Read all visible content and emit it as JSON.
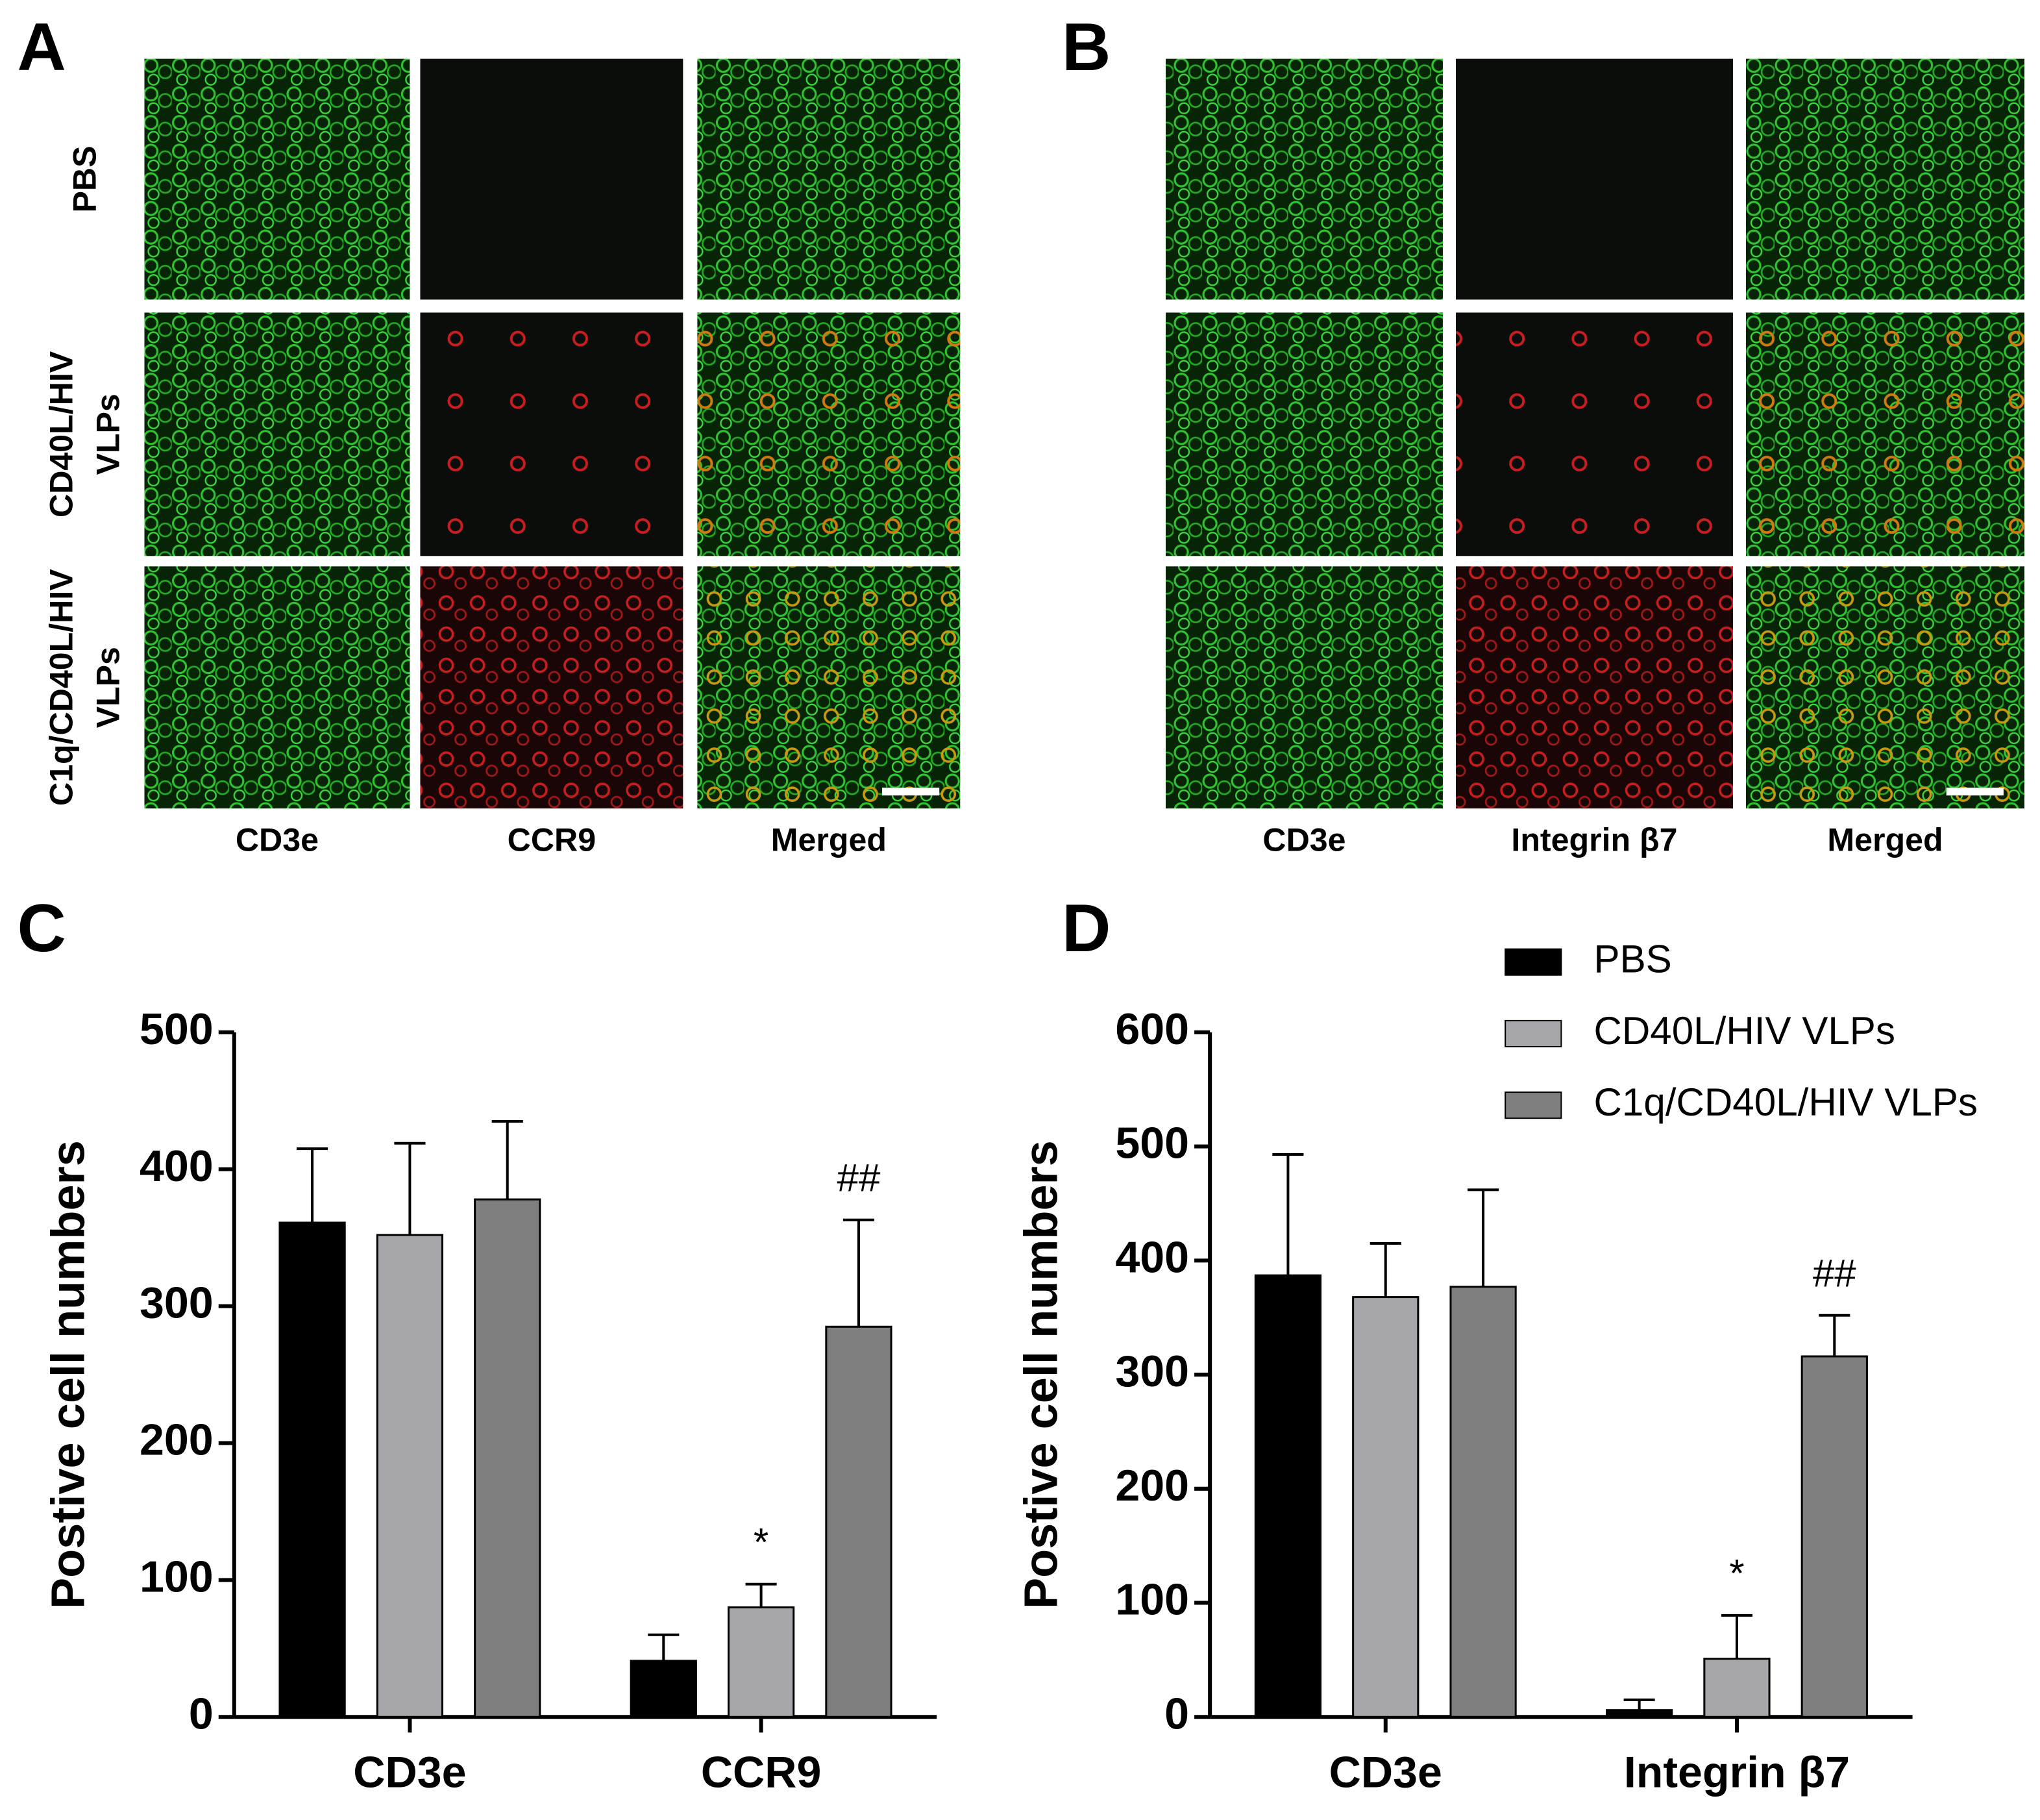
{
  "panels": [
    {
      "label": "A",
      "rows": [
        [
          "PBS"
        ],
        [
          "CD40L/HIV",
          "VLPs"
        ],
        [
          "C1q/CD40L/HIV",
          "VLPs"
        ]
      ],
      "columns": [
        "CD3e",
        "CCR9",
        "Merged"
      ]
    },
    {
      "label": "B",
      "columns": [
        "CD3e",
        "Integrin β7",
        "Merged"
      ]
    }
  ],
  "chart_data": [
    {
      "type": "bar",
      "label": "C",
      "y_label": "Postive cell numbers",
      "categories": [
        "CD3e",
        "CCR9"
      ],
      "series": [
        {
          "color": "#000000",
          "values": [
            361,
            41
          ],
          "errors": [
            54,
            19
          ]
        },
        {
          "color": "#a6a6ab",
          "values": [
            352,
            80
          ],
          "errors": [
            67,
            17
          ],
          "annotations": [
            null,
            "*"
          ]
        },
        {
          "color": "#7f7f7f",
          "values": [
            378,
            285
          ],
          "errors": [
            57,
            78
          ],
          "annotations": [
            null,
            "##"
          ]
        }
      ],
      "ylim": [
        0,
        500
      ],
      "yticks": [
        0,
        100,
        200,
        300,
        400,
        500
      ]
    },
    {
      "type": "bar",
      "label": "D",
      "y_label": "Postive cell numbers",
      "categories": [
        "CD3e",
        "Integrin β7"
      ],
      "series": [
        {
          "name": "PBS",
          "color": "#000000",
          "values": [
            387,
            6
          ],
          "errors": [
            106,
            9
          ]
        },
        {
          "name": "CD40L/HIV VLPs",
          "color": "#a6a6ab",
          "values": [
            368,
            51
          ],
          "errors": [
            47,
            38
          ],
          "annotations": [
            null,
            "*"
          ]
        },
        {
          "name": "C1q/CD40L/HIV VLPs",
          "color": "#7f7f7f",
          "values": [
            377,
            316
          ],
          "errors": [
            85,
            36
          ],
          "annotations": [
            null,
            "##"
          ]
        }
      ],
      "ylim": [
        0,
        600
      ],
      "yticks": [
        0,
        100,
        200,
        300,
        400,
        500,
        600
      ],
      "legend": "upper right"
    }
  ]
}
